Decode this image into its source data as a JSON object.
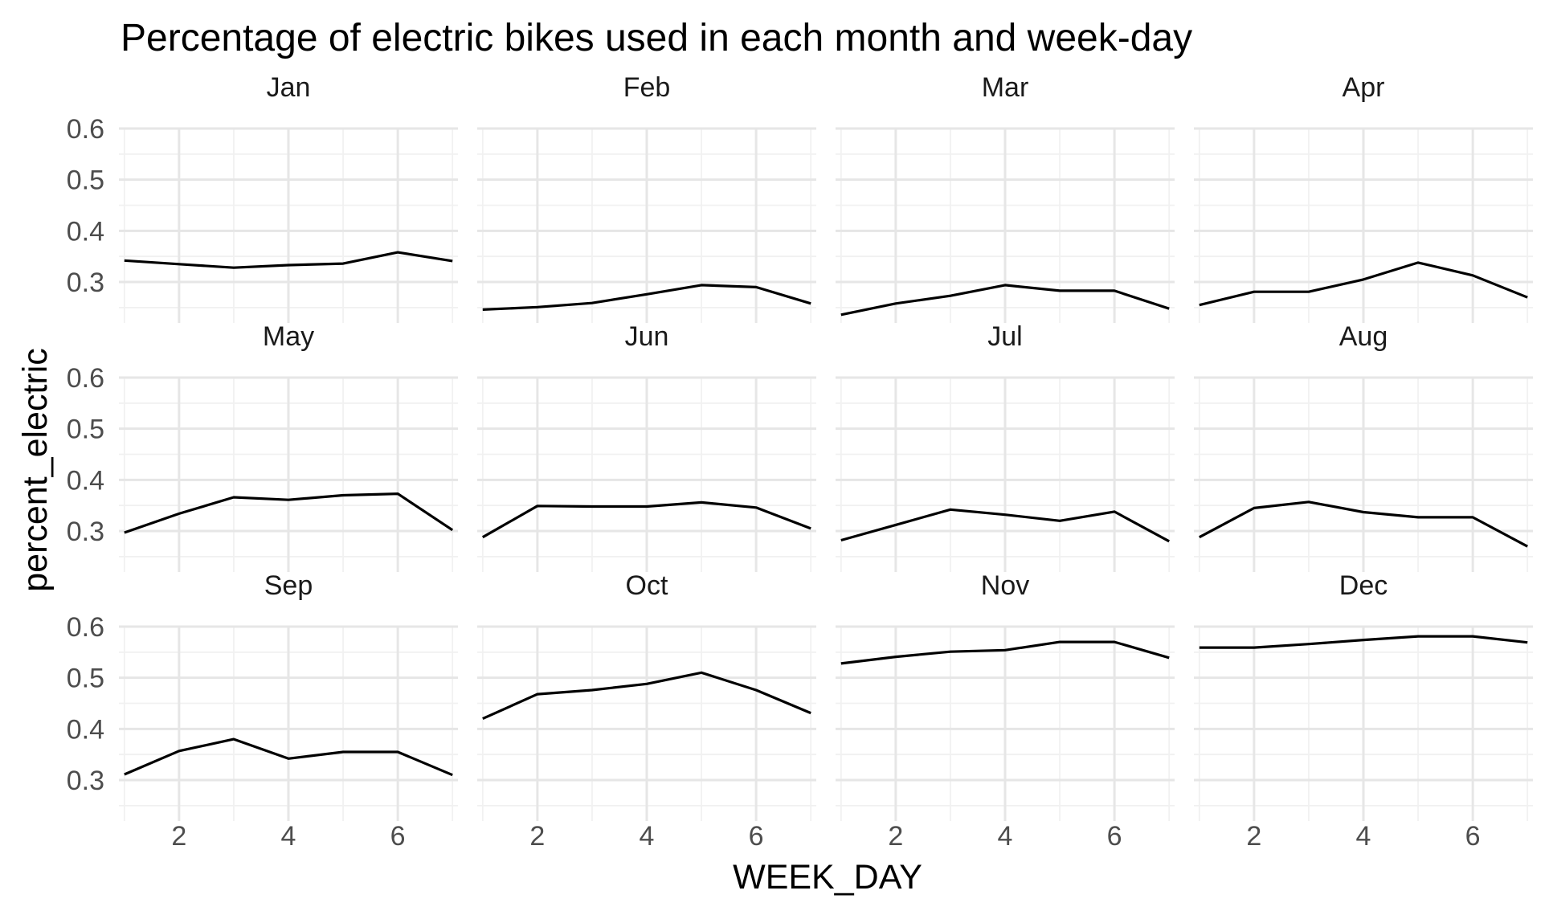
{
  "chart_data": {
    "type": "line",
    "layout": "facet-grid",
    "facet_columns": 4,
    "title": "Percentage of electric bikes used in each month and week-day",
    "xlabel": "WEEK_DAY",
    "ylabel": "percent_electric",
    "x": [
      1,
      2,
      3,
      4,
      5,
      6,
      7
    ],
    "xlim": [
      0.9,
      7.1
    ],
    "ylim": [
      0.22,
      0.6
    ],
    "x_ticks": [
      "2",
      "4",
      "6"
    ],
    "x_tick_values": [
      2,
      4,
      6
    ],
    "y_ticks": [
      "0.3",
      "0.4",
      "0.5",
      "0.6"
    ],
    "y_tick_values": [
      0.3,
      0.4,
      0.5,
      0.6
    ],
    "grid": true,
    "legend": "none",
    "line_color": "#000000",
    "panels": [
      {
        "name": "Jan",
        "values": [
          0.342,
          0.335,
          0.328,
          0.333,
          0.336,
          0.358,
          0.341
        ]
      },
      {
        "name": "Feb",
        "values": [
          0.246,
          0.251,
          0.259,
          0.276,
          0.294,
          0.29,
          0.258
        ]
      },
      {
        "name": "Mar",
        "values": [
          0.236,
          0.258,
          0.273,
          0.294,
          0.283,
          0.283,
          0.248
        ]
      },
      {
        "name": "Apr",
        "values": [
          0.255,
          0.281,
          0.281,
          0.305,
          0.338,
          0.313,
          0.27
        ]
      },
      {
        "name": "May",
        "values": [
          0.297,
          0.334,
          0.366,
          0.361,
          0.37,
          0.373,
          0.302
        ]
      },
      {
        "name": "Jun",
        "values": [
          0.288,
          0.349,
          0.348,
          0.348,
          0.356,
          0.346,
          0.305
        ]
      },
      {
        "name": "Jul",
        "values": [
          0.282,
          0.312,
          0.342,
          0.332,
          0.32,
          0.338,
          0.28
        ]
      },
      {
        "name": "Aug",
        "values": [
          0.288,
          0.345,
          0.357,
          0.337,
          0.327,
          0.327,
          0.27
        ]
      },
      {
        "name": "Sep",
        "values": [
          0.311,
          0.357,
          0.38,
          0.342,
          0.355,
          0.355,
          0.31
        ]
      },
      {
        "name": "Oct",
        "values": [
          0.42,
          0.468,
          0.476,
          0.488,
          0.51,
          0.476,
          0.431
        ]
      },
      {
        "name": "Nov",
        "values": [
          0.528,
          0.541,
          0.551,
          0.554,
          0.57,
          0.57,
          0.539
        ]
      },
      {
        "name": "Dec",
        "values": [
          0.559,
          0.559,
          0.566,
          0.574,
          0.581,
          0.581,
          0.569
        ]
      }
    ]
  }
}
